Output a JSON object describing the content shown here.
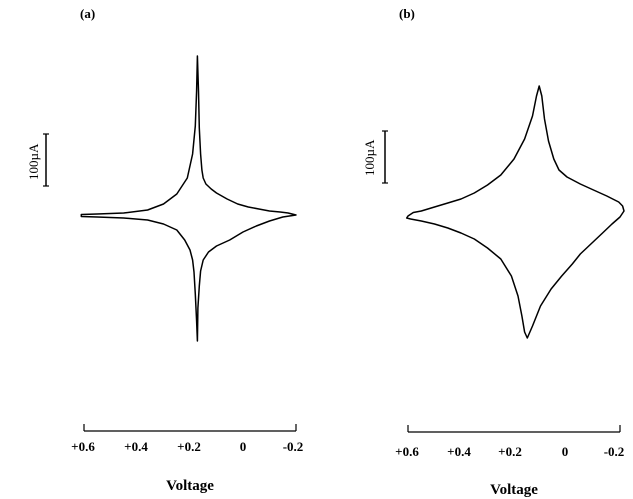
{
  "figure": {
    "panels": [
      {
        "label": "(a)",
        "scale_bar_label": "100µA",
        "xlabel": "Voltage",
        "x_ticks": [
          "+0.6",
          "+0.4",
          "+0.2",
          "0",
          "-0.2"
        ]
      },
      {
        "label": "(b)",
        "scale_bar_label": "100µA",
        "xlabel": "Voltage",
        "x_ticks": [
          "+0.6",
          "+0.4",
          "+0.2",
          "0",
          "-0.2"
        ]
      }
    ]
  },
  "chart_data": [
    {
      "type": "line",
      "title": "(a)",
      "xlabel": "Voltage",
      "ylabel": "",
      "scale_bar": {
        "label": "100µA",
        "value_uA": 100
      },
      "xlim": [
        0.6,
        -0.2
      ],
      "ylim": [
        -140,
        160
      ],
      "x_ticks": [
        0.6,
        0.4,
        0.2,
        0,
        -0.2
      ],
      "series": [
        {
          "x": [
            0.61,
            0.55,
            0.45,
            0.36,
            0.3,
            0.25,
            0.21,
            0.19,
            0.18,
            0.175,
            0.172,
            0.168,
            0.165,
            0.16,
            0.155,
            0.15,
            0.14,
            0.12,
            0.1,
            0.06,
            0.02,
            -0.02,
            -0.06,
            -0.1,
            -0.14,
            -0.17,
            -0.2,
            -0.15,
            -0.1,
            -0.05,
            0.0,
            0.05,
            0.1,
            0.13,
            0.15,
            0.16,
            0.165,
            0.17,
            0.172,
            0.175,
            0.18,
            0.185,
            0.19,
            0.2,
            0.22,
            0.25,
            0.3,
            0.36,
            0.45,
            0.55,
            0.61
          ],
          "y": [
            1.5,
            2,
            3,
            6,
            12,
            22,
            38,
            62,
            90,
            125,
            160,
            125,
            88,
            62,
            46,
            38,
            32,
            27,
            23,
            17,
            12,
            9,
            7,
            5,
            4,
            3,
            1,
            -1,
            -5,
            -10,
            -16,
            -24,
            -30,
            -36,
            -44,
            -55,
            -70,
            -92,
            -125,
            -105,
            -78,
            -56,
            -44,
            -34,
            -24,
            -14,
            -8,
            -4,
            -2,
            -1,
            -0.5
          ]
        }
      ]
    },
    {
      "type": "line",
      "title": "(b)",
      "xlabel": "Voltage",
      "ylabel": "",
      "scale_bar": {
        "label": "100µA",
        "value_uA": 100
      },
      "xlim": [
        0.6,
        -0.2
      ],
      "ylim": [
        -140,
        160
      ],
      "x_ticks": [
        0.6,
        0.4,
        0.2,
        0,
        -0.2
      ],
      "series": [
        {
          "x": [
            0.6,
            0.58,
            0.55,
            0.5,
            0.45,
            0.4,
            0.35,
            0.3,
            0.25,
            0.2,
            0.16,
            0.13,
            0.115,
            0.105,
            0.095,
            0.085,
            0.07,
            0.05,
            0.03,
            0.0,
            -0.05,
            -0.1,
            -0.15,
            -0.18,
            -0.195,
            -0.21,
            -0.215,
            -0.2,
            -0.17,
            -0.13,
            -0.09,
            -0.05,
            -0.02,
            0.02,
            0.06,
            0.1,
            0.13,
            0.15,
            0.16,
            0.17,
            0.185,
            0.21,
            0.25,
            0.3,
            0.35,
            0.4,
            0.45,
            0.5,
            0.55,
            0.59,
            0.605,
            0.6
          ],
          "y": [
            -2,
            1.5,
            3,
            7,
            11,
            15,
            21,
            29,
            39,
            55,
            75,
            98,
            118,
            128,
            118,
            95,
            73,
            55,
            44,
            37,
            30,
            24,
            18,
            14,
            12,
            8,
            3,
            -3,
            -10,
            -20,
            -30,
            -40,
            -50,
            -62,
            -75,
            -92,
            -112,
            -124,
            -118,
            -102,
            -82,
            -62,
            -45,
            -34,
            -25,
            -19,
            -14,
            -10,
            -7,
            -5,
            -4,
            -2
          ]
        }
      ]
    }
  ]
}
